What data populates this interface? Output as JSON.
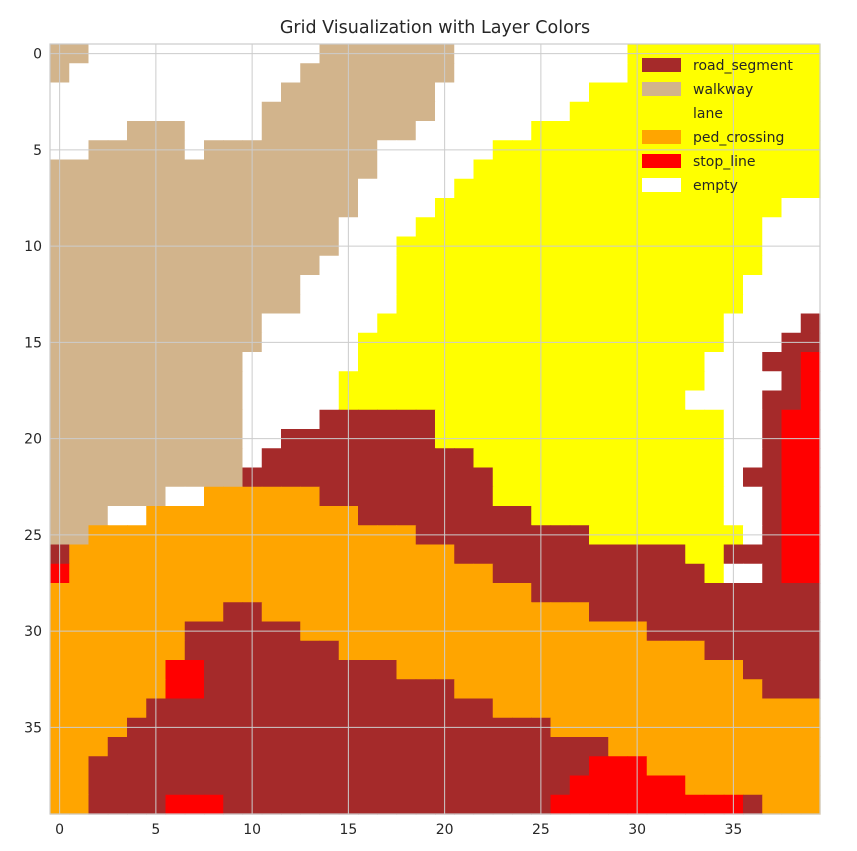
{
  "chart_data": {
    "type": "heatmap",
    "title": "Grid Visualization with Layer Colors",
    "xlabel": "",
    "ylabel": "",
    "xlim": [
      -0.5,
      39.5
    ],
    "ylim": [
      39.5,
      -0.5
    ],
    "x_ticks": [
      0,
      5,
      10,
      15,
      20,
      25,
      30,
      35
    ],
    "y_ticks": [
      0,
      5,
      10,
      15,
      20,
      25,
      30,
      35
    ],
    "grid": true,
    "legend_position": "top-right",
    "legend": [
      {
        "key": "R",
        "name": "road_segment",
        "color": "#a52a2a"
      },
      {
        "key": "W",
        "name": "walkway",
        "color": "#d2b48c"
      },
      {
        "key": "L",
        "name": "lane",
        "color": "#ffff00"
      },
      {
        "key": "P",
        "name": "ped_crossing",
        "color": "#ffa500"
      },
      {
        "key": "S",
        "name": "stop_line",
        "color": "#ff0000"
      },
      {
        "key": "E",
        "name": "empty",
        "color": "#ffffff"
      }
    ],
    "rows": [
      "WWEEEEEEEEEEEEWWWWWWWEEEEEEEEELLLLLLLLLL",
      "WEEEEEEEEEEEEWWWWWWWWEEEEEEEEELLLLLLLLLL",
      "EEEEEEEEEEEEWWWWWWWWEEEEEEEELLLLLLLLLLLL",
      "EEEEEEEEEEEWWWWWWWWWEEEEEEELLLLLLLLLLLLL",
      "EEEEWWWEEEEWWWWWWWWEEEEEELLLLLLLLLLLLLLL",
      "EEWWWWWEWWWWWWWWWEEEEEELLLLLLLLLLLLLLLLL",
      "WWWWWWWWWWWWWWWWWEEEEELLLLLLLLLLLLLLLLLL",
      "WWWWWWWWWWWWWWWWEEEEELLLLLLLLLLLLLLLLLLL",
      "WWWWWWWWWWWWWWWWEEEELLLLLLLLLLLLLLLLLLEE",
      "WWWWWWWWWWWWWWWEEEELLLLLLLLLLLLLLLLLLEEE",
      "WWWWWWWWWWWWWWWEEELLLLLLLLLLLLLLLLLLLEEE",
      "WWWWWWWWWWWWWWEEEELLLLLLLLLLLLLLLLLLLEEE",
      "WWWWWWWWWWWWWEEEEELLLLLLLLLLLLLLLLLLEEEE",
      "WWWWWWWWWWWWWEEEEELLLLLLLLLLLLLLLLLLEEEE",
      "WWWWWWWWWWWEEEEEELLLLLLLLLLLLLLLLLLEEEER",
      "WWWWWWWWWWWEEEEELLLLLLLLLLLLLLLLLLLEEERR",
      "WWWWWWWWWWEEEEEELLLLLLLLLLLLLLLLLLEEERRS",
      "WWWWWWWWWWEEEEELLLLLLLLLLLLLLLLLLLEEEERS",
      "WWWWWWWWWWEEEEELLLLLLLLLLLLLLLLLLEEEERRS",
      "WWWWWWWWWWEEEERRRRRRLLLLLLLLLLLLLLLEERSS",
      "WWWWWWWWWWEERRRRRRRRLLLLLLLLLLLLLLLEERSS",
      "WWWWWWWWWWERRRRRRRRRRRLLLLLLLLLLLLLEERSS",
      "WWWWWWWWWWRRRRRRRRRRRRRLLLLLLLLLLLLERRSS",
      "WWWWWWEEPPPPPPRRRRRRRRRLLLLLLLLLLLLEERSS",
      "WWWEEPPPPPPPPPPPRRRRRRRRRLLLLLLLLLLEERSS",
      "WWPPPPPPPPPPPPPPPPPRRRRRRRRRLLLLLLLLERSS",
      "RPPPPPPPPPPPPPPPPPPPPRRRRRRRRRRRRLLRRRSS",
      "SPPPPPPPPPPPPPPPPPPPPPPRRRRRRRRRRRLEERSS",
      "PPPPPPPPPPPPPPPPPPPPPPPPPRRRRRRRRRRRRRRR",
      "PPPPPPPPPRRPPPPPPPPPPPPPPPPPRRRRRRRRRRRR",
      "PPPPPPPRRRRRRPPPPPPPPPPPPPPPPPPRRRRRRRRR",
      "PPPPPPPRRRRRRRRPPPPPPPPPPPPPPPPPPPRRRRRR",
      "PPPPPPSSRRRRRRRRRRPPPPPPPPPPPPPPPPPPRRRR",
      "PPPPPPSSRRRRRRRRRRRRRPPPPPPPPPPPPPPPPRRR",
      "PPPPPRRRRRRRRRRRRRRRRRRPPPPPPPPPPPPPPPPP",
      "PPPPRRRRRRRRRRRRRRRRRRRRRRPPPPPPPPPPPPPP",
      "PPPRRRRRRRRRRRRRRRRRRRRRRRRRRPPPPPPPPPPP",
      "PPRRRRRRRRRRRRRRRRRRRRRRRRRRSSSPPPPPPPPP",
      "PPRRRRRRRRRRRRRRRRRRRRRRRRRSSSSSSPPPPPPP",
      "PPRRRRSSSRRRRRRRRRRRRRRRRRSSSSSSSSSSRPPP"
    ]
  }
}
